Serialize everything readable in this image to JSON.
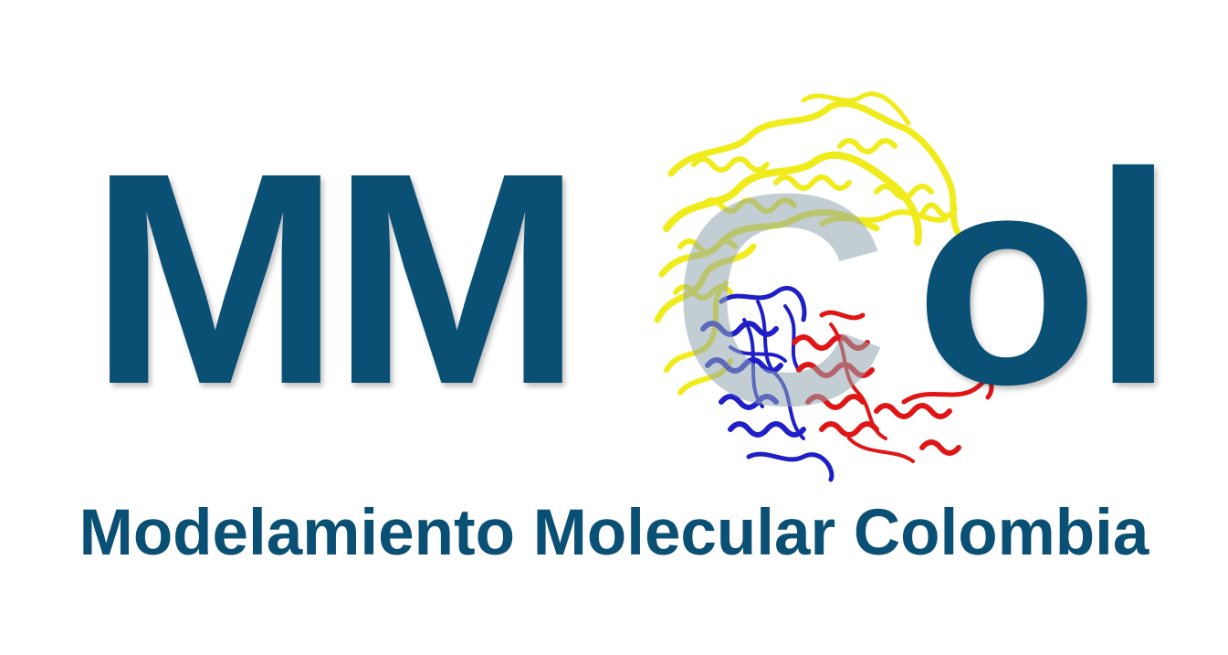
{
  "logo": {
    "mm": "MM",
    "c": "C",
    "ol": "ol",
    "tagline": "Modelamiento Molecular Colombia"
  },
  "colors": {
    "brand": "#0a4f74",
    "c_letter": "#8fa6b1",
    "protein_yellow": "#f0ec1c",
    "protein_blue": "#1f1fc8",
    "protein_red": "#e01515"
  },
  "icons": {
    "molecule": "protein-ribbon-icon"
  }
}
